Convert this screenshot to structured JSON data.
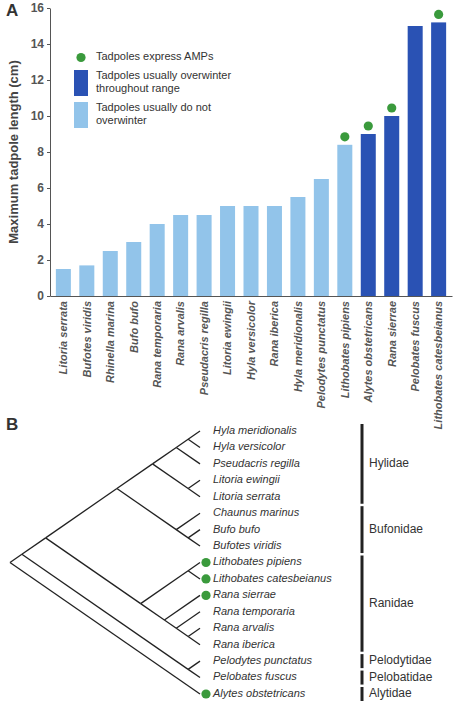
{
  "chart_data": {
    "type": "bar",
    "ylabel": "Maximum tadpole length (cm)",
    "categories": [
      "Litoria serrata",
      "Bufotes viridis",
      "Rhinella marina",
      "Bufo bufo",
      "Rana temporaria",
      "Rana arvalis",
      "Pseudacris regilla",
      "Litoria ewingii",
      "Hyla versicolor",
      "Rana iberica",
      "Hyla meridionalis",
      "Pelodytes punctatus",
      "Lithobates pipiens",
      "Alytes obstetricans",
      "Rana sierrae",
      "Pelobates fuscus",
      "Lithobates catesbeianus"
    ],
    "series": [
      {
        "name": "Tadpoles express AMPs",
        "type": "scatter",
        "marker": "circle",
        "color": "#3a9a3c",
        "values": [
          null,
          null,
          null,
          null,
          null,
          null,
          null,
          null,
          null,
          null,
          null,
          null,
          8.4,
          9.0,
          10.0,
          null,
          15.2
        ]
      },
      {
        "name": "Tadpoles usually overwinter throughout range",
        "type": "bar",
        "color": "#2a52b4",
        "values": [
          null,
          null,
          null,
          null,
          null,
          null,
          null,
          null,
          null,
          null,
          null,
          null,
          null,
          9.0,
          10.0,
          15.0,
          15.2
        ]
      },
      {
        "name": "Tadpoles usually do not overwinter",
        "type": "bar",
        "color": "#92c4ea",
        "values": [
          1.5,
          1.7,
          2.5,
          3.0,
          4.0,
          4.5,
          4.5,
          5.0,
          5.0,
          5.0,
          5.5,
          6.5,
          8.4,
          null,
          null,
          null,
          null
        ]
      }
    ],
    "ylim": [
      0,
      16
    ],
    "yticks": [
      0,
      2,
      4,
      6,
      8,
      10,
      12,
      14,
      16
    ],
    "grid": false,
    "legend": "upper left"
  },
  "panel_labels": [
    "A",
    "B"
  ],
  "tree": {
    "children": [
      {
        "children": [
          {
            "children": [
              {
                "children": [
                  {
                    "clade": "Hylidae",
                    "children": [
                      {
                        "children": [
                          {
                            "children": [
                              {
                                "name": "Hyla meridionalis"
                              },
                              {
                                "name": "Hyla versicolor"
                              }
                            ]
                          },
                          {
                            "name": "Pseudacris regilla"
                          }
                        ]
                      },
                      {
                        "children": [
                          {
                            "name": "Litoria ewingii"
                          },
                          {
                            "name": "Litoria serrata"
                          }
                        ]
                      }
                    ]
                  },
                  {
                    "clade": "Bufonidae",
                    "children": [
                      {
                        "name": "Chaunus marinus"
                      },
                      {
                        "children": [
                          {
                            "name": "Bufo bufo"
                          },
                          {
                            "name": "Bufotes viridis"
                          }
                        ]
                      }
                    ]
                  }
                ]
              },
              {
                "clade": "Ranidae",
                "children": [
                  {
                    "children": [
                      {
                        "name": "Lithobates pipiens",
                        "amp": true
                      },
                      {
                        "name": "Lithobates catesbeianus",
                        "amp": true
                      }
                    ]
                  },
                  {
                    "children": [
                      {
                        "name": "Rana sierrae",
                        "amp": true
                      },
                      {
                        "children": [
                          {
                            "name": "Rana temporaria"
                          },
                          {
                            "children": [
                              {
                                "name": "Rana arvalis"
                              },
                              {
                                "name": "Rana iberica"
                              }
                            ]
                          }
                        ]
                      }
                    ]
                  }
                ]
              }
            ]
          },
          {
            "children": [
              {
                "name": "Pelodytes punctatus",
                "clade": "Pelodytidae"
              },
              {
                "name": "Pelobates fuscus",
                "clade": "Pelobatidae"
              }
            ]
          }
        ]
      },
      {
        "name": "Alytes obstetricans",
        "amp": true,
        "clade": "Alytidae"
      }
    ]
  }
}
